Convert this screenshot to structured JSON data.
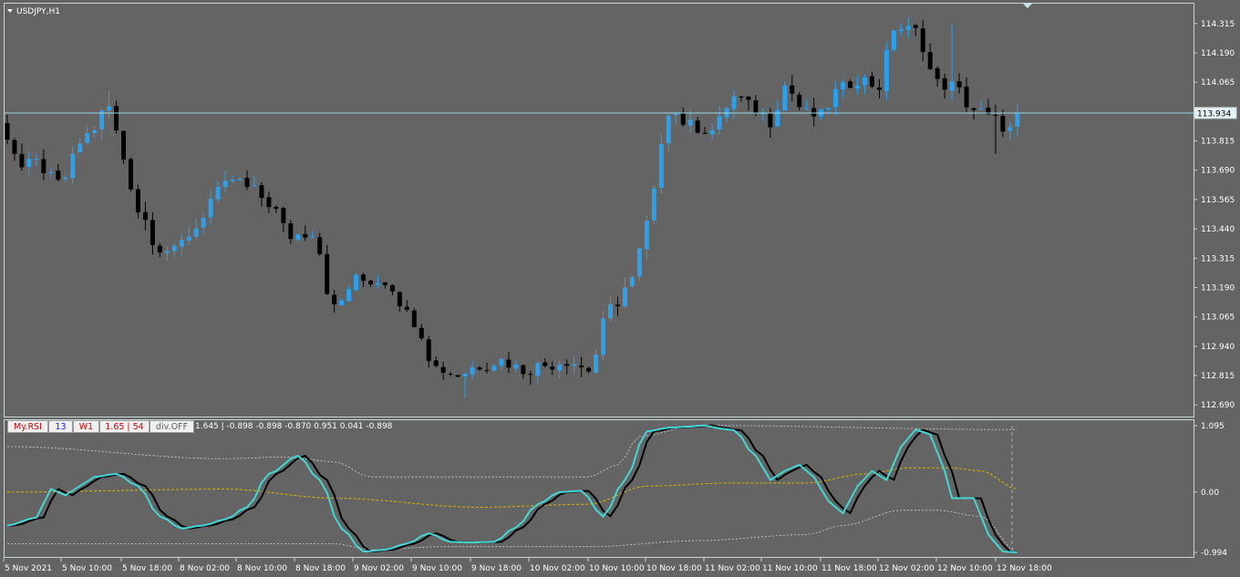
{
  "chart_title": "USDJPY,H1",
  "colors": {
    "background": "#646464",
    "bull": "#2e9fe8",
    "bear": "#000000",
    "frame": "#c9d6d6",
    "price_line": "#9ad9e6",
    "rsi_fast": "#43d6d6",
    "rsi_slow": "#000000",
    "mid_band": "#d8b200",
    "outer_band": "#d0d0d0"
  },
  "indicator_buttons": [
    {
      "id": "name",
      "label": "My.RSI",
      "color": "#d10000"
    },
    {
      "id": "period",
      "label": "13",
      "color": "#1a1aff"
    },
    {
      "id": "tf",
      "label": "W1",
      "color": "#d10000"
    },
    {
      "id": "levels",
      "label": "1.65 | 54",
      "color": "#d10000"
    },
    {
      "id": "div",
      "label": "div.OFF",
      "color": "#606060"
    }
  ],
  "indicator_values_text": "1.645 |  -0.898 -0.898 -0.870 0.951 0.041 -0.898",
  "chart_data": [
    {
      "type": "candlestick",
      "symbol": "USDJPY",
      "timeframe": "H1",
      "ylim": [
        112.64,
        114.4
      ],
      "y_ticks": [
        114.315,
        114.19,
        114.065,
        113.815,
        113.69,
        113.565,
        113.44,
        113.315,
        113.19,
        113.065,
        112.94,
        112.815,
        112.69
      ],
      "current_price": 113.934,
      "current_price_label": "113.934",
      "x_labels": [
        "5 Nov 2021",
        "5 Nov 10:00",
        "5 Nov 18:00",
        "8 Nov 02:00",
        "8 Nov 10:00",
        "8 Nov 18:00",
        "9 Nov 02:00",
        "9 Nov 10:00",
        "9 Nov 18:00",
        "10 Nov 02:00",
        "10 Nov 10:00",
        "10 Nov 18:00",
        "11 Nov 02:00",
        "11 Nov 10:00",
        "11 Nov 18:00",
        "12 Nov 02:00",
        "12 Nov 10:00",
        "12 Nov 18:00"
      ],
      "anchors": [
        [
          0,
          113.84
        ],
        [
          2,
          113.7
        ],
        [
          4,
          113.72
        ],
        [
          7,
          113.63
        ],
        [
          11,
          113.84
        ],
        [
          14,
          113.96
        ],
        [
          16,
          113.74
        ],
        [
          18,
          113.52
        ],
        [
          21,
          113.36
        ],
        [
          23,
          113.34
        ],
        [
          25,
          113.42
        ],
        [
          29,
          113.59
        ],
        [
          31,
          113.65
        ],
        [
          34,
          113.6
        ],
        [
          36,
          113.55
        ],
        [
          39,
          113.41
        ],
        [
          42,
          113.43
        ],
        [
          45,
          113.1
        ],
        [
          48,
          113.22
        ],
        [
          52,
          113.22
        ],
        [
          56,
          113.05
        ],
        [
          59,
          112.85
        ],
        [
          62,
          112.82
        ],
        [
          65,
          112.86
        ],
        [
          68,
          112.88
        ],
        [
          71,
          112.84
        ],
        [
          74,
          112.86
        ],
        [
          77,
          112.88
        ],
        [
          80,
          112.84
        ],
        [
          83,
          113.1
        ],
        [
          86,
          113.22
        ],
        [
          88,
          113.46
        ],
        [
          91,
          113.95
        ],
        [
          94,
          113.88
        ],
        [
          97,
          113.86
        ],
        [
          100,
          114.0
        ],
        [
          103,
          113.95
        ],
        [
          105,
          113.9
        ],
        [
          107,
          114.05
        ],
        [
          110,
          113.93
        ],
        [
          112,
          113.92
        ],
        [
          114,
          114.02
        ],
        [
          117,
          114.08
        ],
        [
          120,
          114.05
        ],
        [
          122,
          114.3
        ],
        [
          125,
          114.28
        ],
        [
          128,
          114.06
        ],
        [
          130,
          114.05
        ],
        [
          133,
          113.95
        ],
        [
          136,
          113.9
        ],
        [
          138,
          113.86
        ],
        [
          139,
          113.934
        ]
      ],
      "extremes": [
        [
          14,
          114.03
        ],
        [
          63,
          112.72
        ],
        [
          130,
          114.31
        ],
        [
          136,
          113.76
        ]
      ]
    },
    {
      "type": "oscillator",
      "name": "My.RSI",
      "ylim": [
        -0.994,
        1.095
      ],
      "y_ticks": [
        1.095,
        0.0,
        -0.994
      ],
      "y_tick_labels": [
        "1.095",
        "0.00",
        "-0.994"
      ],
      "series": [
        {
          "name": "fast",
          "anchors": [
            [
              0,
              -0.55
            ],
            [
              4,
              -0.42
            ],
            [
              6,
              0.05
            ],
            [
              8,
              -0.05
            ],
            [
              10,
              0.1
            ],
            [
              12,
              0.25
            ],
            [
              15,
              0.3
            ],
            [
              18,
              0.1
            ],
            [
              21,
              -0.4
            ],
            [
              24,
              -0.6
            ],
            [
              27,
              -0.55
            ],
            [
              30,
              -0.45
            ],
            [
              33,
              -0.25
            ],
            [
              36,
              0.3
            ],
            [
              40,
              0.6
            ],
            [
              43,
              0.2
            ],
            [
              46,
              -0.6
            ],
            [
              49,
              -0.98
            ],
            [
              52,
              -0.95
            ],
            [
              55,
              -0.85
            ],
            [
              58,
              -0.68
            ],
            [
              61,
              -0.82
            ],
            [
              64,
              -0.83
            ],
            [
              67,
              -0.82
            ],
            [
              70,
              -0.58
            ],
            [
              73,
              -0.2
            ],
            [
              76,
              0.0
            ],
            [
              79,
              0.02
            ],
            [
              82,
              -0.4
            ],
            [
              85,
              0.2
            ],
            [
              88,
              1.0
            ],
            [
              91,
              1.06
            ],
            [
              94,
              1.08
            ],
            [
              96,
              1.1
            ],
            [
              98,
              1.05
            ],
            [
              100,
              1.02
            ],
            [
              103,
              0.6
            ],
            [
              105,
              0.2
            ],
            [
              107,
              0.35
            ],
            [
              109,
              0.45
            ],
            [
              111,
              0.25
            ],
            [
              113,
              -0.15
            ],
            [
              115,
              -0.35
            ],
            [
              117,
              0.1
            ],
            [
              119,
              0.35
            ],
            [
              121,
              0.2
            ],
            [
              123,
              0.75
            ],
            [
              125,
              1.03
            ],
            [
              127,
              0.95
            ],
            [
              129,
              0.35
            ],
            [
              130,
              -0.1
            ],
            [
              133,
              -0.1
            ],
            [
              135,
              -0.7
            ],
            [
              137,
              -0.98
            ],
            [
              139,
              -0.994
            ]
          ],
          "color": "#43d6d6"
        },
        {
          "name": "slow",
          "color": "#000000",
          "lag": 0.9
        },
        {
          "name": "upper_band",
          "color": "#d0d0d0"
        },
        {
          "name": "mid_band",
          "color": "#d8b200"
        },
        {
          "name": "lower_band",
          "color": "#d0d0d0"
        }
      ]
    }
  ]
}
